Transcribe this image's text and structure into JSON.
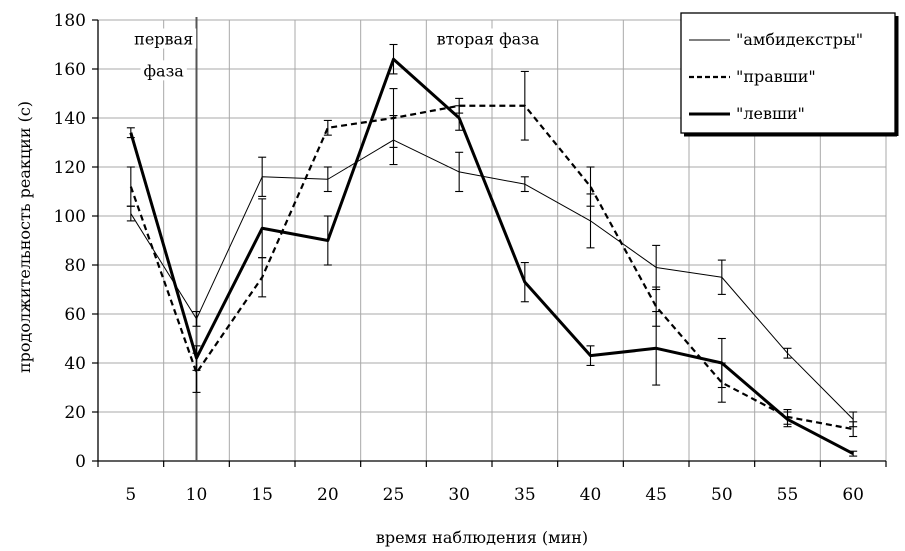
{
  "chart_data": {
    "type": "line",
    "title": "",
    "xlabel": "время наблюдения (мин)",
    "ylabel": "продолжительность реакции (с)",
    "x": [
      5,
      10,
      15,
      20,
      25,
      30,
      35,
      40,
      45,
      50,
      55,
      60
    ],
    "xlim": [
      2.5,
      62.5
    ],
    "ylim": [
      0,
      180
    ],
    "yticks": [
      0,
      20,
      40,
      60,
      80,
      100,
      120,
      140,
      160,
      180
    ],
    "grid": true,
    "legend_position": "top-right",
    "annotations": [
      {
        "text": "первая",
        "x_data": 7.5,
        "y_data": 170
      },
      {
        "text": "фаза",
        "x_data": 7.5,
        "y_data": 157
      },
      {
        "text": "вторая фаза",
        "x_data": 32.2,
        "y_data": 170
      }
    ],
    "phase_divider_x": 10,
    "series": [
      {
        "name": "\"амбидекстры\"",
        "style": "thin",
        "values": [
          101,
          58,
          116,
          115,
          131,
          118,
          113,
          98,
          79,
          75,
          44,
          17
        ],
        "err": [
          3,
          3,
          8,
          5,
          10,
          8,
          3,
          11,
          9,
          7,
          2,
          3
        ]
      },
      {
        "name": "\"правши\"",
        "style": "dashed",
        "values": [
          112,
          36,
          75,
          136,
          140,
          145,
          145,
          112,
          63,
          32,
          18,
          13
        ],
        "err": [
          8,
          8,
          8,
          3,
          12,
          3,
          14,
          8,
          8,
          8,
          3,
          3
        ]
      },
      {
        "name": "\"левши\"",
        "style": "thick",
        "values": [
          134,
          42,
          95,
          90,
          164,
          140,
          73,
          43,
          46,
          40,
          17,
          3
        ],
        "err": [
          2,
          5,
          12,
          10,
          6,
          5,
          8,
          4,
          15,
          10,
          3,
          1
        ]
      }
    ]
  },
  "colors": {
    "line": "#000000",
    "grid": "#a9a9a9",
    "background": "#ffffff"
  }
}
